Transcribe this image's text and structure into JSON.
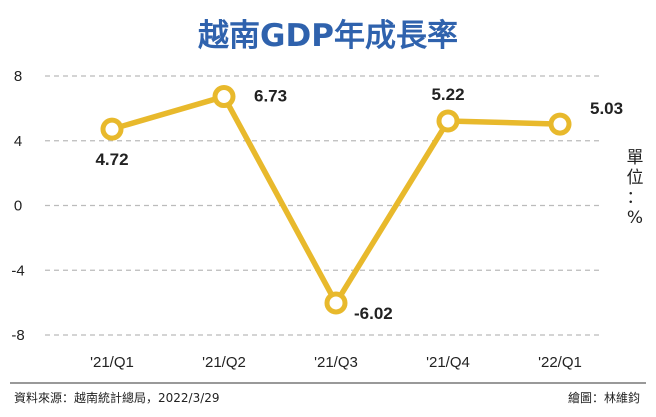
{
  "chart_data": {
    "type": "line",
    "title": "越南GDP年成長率",
    "categories": [
      "'21/Q1",
      "'21/Q2",
      "'21/Q3",
      "'21/Q4",
      "'22/Q1"
    ],
    "values": [
      4.72,
      6.73,
      -6.02,
      5.22,
      5.03
    ],
    "value_labels": [
      "4.72",
      "6.73",
      "-6.02",
      "5.22",
      "5.03"
    ],
    "yticks": [
      "8",
      "4",
      "0",
      "-4",
      "-8"
    ],
    "ytick_values": [
      8,
      4,
      0,
      -4,
      -8
    ],
    "ylim": [
      -8,
      8
    ],
    "unit_label": [
      "單",
      "位",
      "：",
      "%"
    ],
    "grid": true,
    "line_color": "#e8b92c",
    "marker_fill": "#ffffff"
  },
  "footer": {
    "source": "資料來源：越南統計總局，2022/3/29",
    "credit": "繪圖：林維鈞"
  },
  "colors": {
    "title": "#2f62ad",
    "grid": "#bbbbbb",
    "divider": "#333333"
  }
}
